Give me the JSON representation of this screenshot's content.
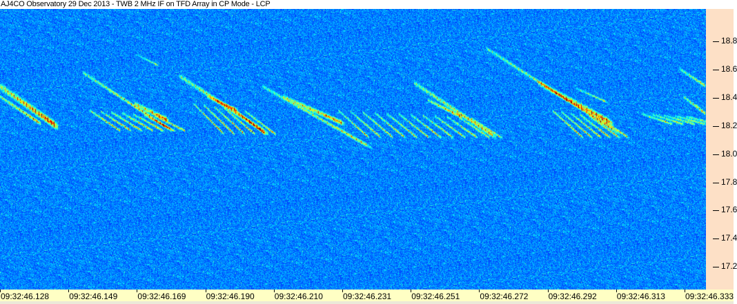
{
  "title": "AJ4CO Observatory 29 Dec 2013 - TWB 2 MHz IF on TFD Array in CP Mode - LCP",
  "chart_data": {
    "type": "heatmap",
    "title": "AJ4CO Observatory 29 Dec 2013 - TWB 2 MHz IF on TFD Array in CP Mode - LCP",
    "xlabel": "",
    "ylabel": "",
    "x_ticks": [
      "09:32:46.128",
      "09:32:46.149",
      "09:32:46.169",
      "09:32:46.190",
      "09:32:46.210",
      "09:32:46.231",
      "09:32:46.251",
      "09:32:46.272",
      "09:32:46.292",
      "09:32:46.313",
      "09:32:46.333"
    ],
    "y_ticks": [
      "18.8",
      "18.6",
      "18.4",
      "18.2",
      "18.0",
      "17.8",
      "17.6",
      "17.4",
      "17.2"
    ],
    "ylim": [
      17.04,
      19.03
    ],
    "y_axis_position": "right",
    "colormap": "jet",
    "colors": {
      "background": "#0a3cc8",
      "x_axis_bg": "#ffffc4",
      "y_axis_bg": "#fde0c6"
    }
  }
}
